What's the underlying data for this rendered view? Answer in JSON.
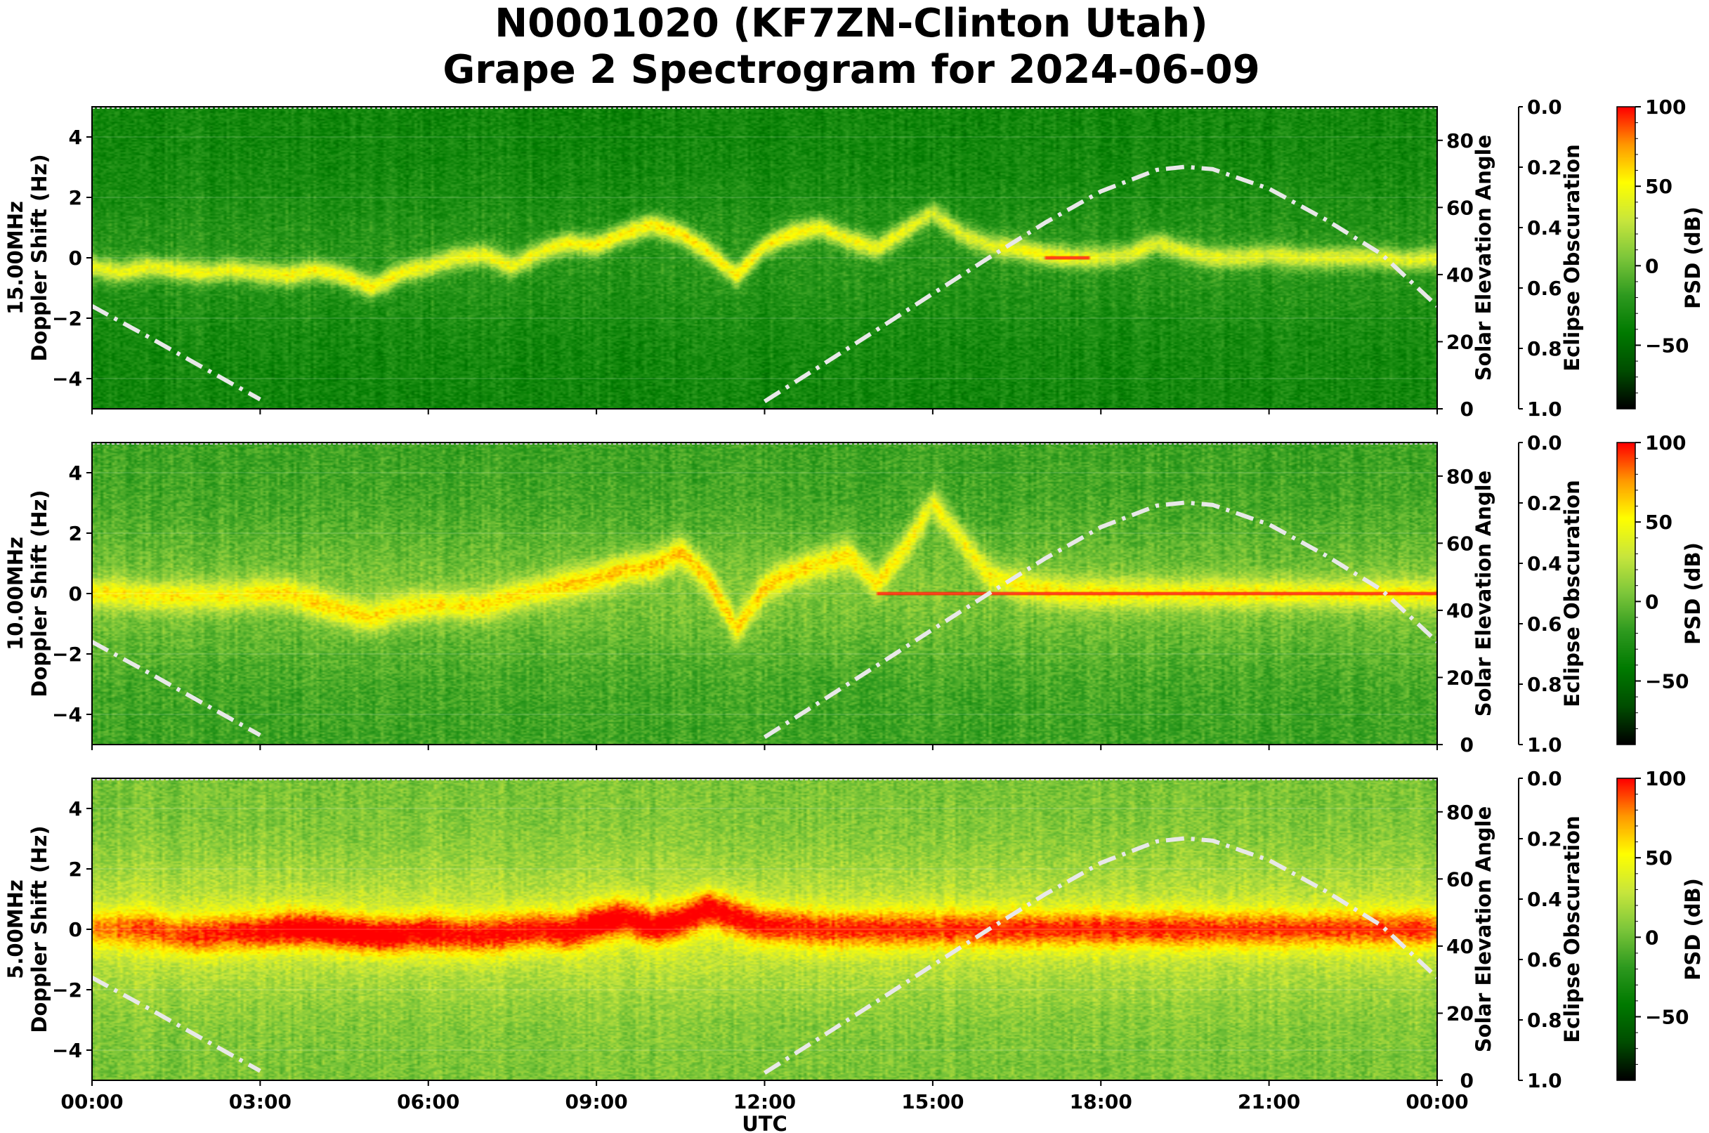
{
  "title_line1": "N0001020 (KF7ZN-Clinton Utah)",
  "title_line2": "Grape 2 Spectrogram for 2024-06-09",
  "colors": {
    "psd_colormap": [
      "#000000",
      "#004d00",
      "#007a00",
      "#2e9a1f",
      "#7cc63a",
      "#c8e63c",
      "#ffff00",
      "#ff9900",
      "#ff0000"
    ],
    "solar_curve": "#e8e8e8",
    "carrier_line": "#ff2a00"
  },
  "chart_data": [
    {
      "type": "heatmap",
      "panel_label": "15.00MHz",
      "ylabel": "Doppler Shift (Hz)",
      "ylim": [
        -5,
        5
      ],
      "yticks": [
        -4,
        -2,
        0,
        2,
        4
      ],
      "xlim": [
        "00:00",
        "00:00"
      ],
      "xticks": [
        "00:00",
        "03:00",
        "06:00",
        "09:00",
        "12:00",
        "15:00",
        "18:00",
        "21:00",
        "00:00"
      ],
      "right_axis_label": "Solar Elevation Angle",
      "right_axis_ylim": [
        0,
        90
      ],
      "right_axis_ticks": [
        0,
        20,
        40,
        60,
        80
      ],
      "eclipse_axis_label": "Eclipse Obscuration",
      "eclipse_ylim": [
        1.0,
        0.0
      ],
      "eclipse_ticks": [
        "0.0",
        "0.2",
        "0.4",
        "0.6",
        "0.8",
        "1.0"
      ],
      "colorbar_label": "PSD (dB)",
      "colorbar_range": [
        -90,
        100
      ],
      "colorbar_ticks": [
        "100",
        "50",
        "0",
        "−50"
      ],
      "background_level": 0.3,
      "trace": {
        "x_hours": [
          0,
          0.5,
          1.0,
          1.5,
          2.0,
          2.5,
          3.0,
          3.5,
          4.0,
          4.5,
          5.0,
          5.5,
          6.0,
          6.5,
          7.0,
          7.5,
          8.0,
          8.5,
          9.0,
          9.5,
          10.0,
          10.5,
          11.0,
          11.5,
          12.0,
          12.5,
          13.0,
          13.5,
          14.0,
          14.5,
          15.0,
          15.5,
          16.0,
          16.5,
          17.0,
          17.5,
          18.0,
          18.5,
          19.0,
          19.5,
          20.0,
          20.5,
          21.0,
          21.5,
          22.0,
          22.5,
          23.0,
          23.5,
          24.0
        ],
        "doppler_hz": [
          -0.3,
          -0.5,
          -0.3,
          -0.4,
          -0.5,
          -0.4,
          -0.5,
          -0.6,
          -0.4,
          -0.6,
          -1.0,
          -0.5,
          -0.3,
          0.0,
          0.1,
          -0.3,
          0.2,
          0.5,
          0.4,
          0.8,
          1.1,
          0.8,
          0.2,
          -0.6,
          0.4,
          0.8,
          1.0,
          0.6,
          0.3,
          0.9,
          1.5,
          0.8,
          0.4,
          0.3,
          0.1,
          0.0,
          0.0,
          0.1,
          0.5,
          0.2,
          0.0,
          0.0,
          0.1,
          0.0,
          0.0,
          0.0,
          0.0,
          -0.1,
          0.0
        ],
        "intensity": [
          0.65,
          0.65,
          0.65,
          0.65,
          0.65,
          0.65,
          0.65,
          0.68,
          0.68,
          0.7,
          0.7,
          0.68,
          0.66,
          0.66,
          0.66,
          0.66,
          0.68,
          0.68,
          0.7,
          0.72,
          0.72,
          0.72,
          0.7,
          0.7,
          0.7,
          0.7,
          0.68,
          0.66,
          0.66,
          0.66,
          0.62,
          0.62,
          0.64,
          0.66,
          0.68,
          0.66,
          0.62,
          0.62,
          0.62,
          0.62,
          0.62,
          0.62,
          0.62,
          0.62,
          0.62,
          0.62,
          0.62,
          0.62,
          0.62
        ],
        "spread_hz": 0.25
      },
      "carrier": {
        "x_start_hours": 17.0,
        "x_end_hours": 17.8,
        "doppler_hz": 0.0
      }
    },
    {
      "type": "heatmap",
      "panel_label": "10.00MHz",
      "ylabel": "Doppler Shift (Hz)",
      "ylim": [
        -5,
        5
      ],
      "yticks": [
        -4,
        -2,
        0,
        2,
        4
      ],
      "xlim": [
        "00:00",
        "00:00"
      ],
      "xticks": [
        "00:00",
        "03:00",
        "06:00",
        "09:00",
        "12:00",
        "15:00",
        "18:00",
        "21:00",
        "00:00"
      ],
      "right_axis_label": "Solar Elevation Angle",
      "right_axis_ylim": [
        0,
        90
      ],
      "right_axis_ticks": [
        0,
        20,
        40,
        60,
        80
      ],
      "eclipse_axis_label": "Eclipse Obscuration",
      "eclipse_ylim": [
        1.0,
        0.0
      ],
      "eclipse_ticks": [
        "0.0",
        "0.2",
        "0.4",
        "0.6",
        "0.8",
        "1.0"
      ],
      "colorbar_label": "PSD (dB)",
      "colorbar_range": [
        -90,
        100
      ],
      "colorbar_ticks": [
        "100",
        "50",
        "0",
        "−50"
      ],
      "background_level": 0.4,
      "trace": {
        "x_hours": [
          0,
          0.5,
          1.0,
          1.5,
          2.0,
          2.5,
          3.0,
          3.5,
          4.0,
          4.5,
          5.0,
          5.5,
          6.0,
          6.5,
          7.0,
          7.5,
          8.0,
          8.5,
          9.0,
          9.5,
          10.0,
          10.5,
          11.0,
          11.5,
          12.0,
          12.5,
          13.0,
          13.5,
          14.0,
          14.5,
          15.0,
          15.5,
          16.0,
          16.5,
          17.0,
          17.5,
          18.0,
          18.5,
          19.0,
          19.5,
          20.0,
          20.5,
          21.0,
          21.5,
          22.0,
          22.5,
          23.0,
          23.5,
          24.0
        ],
        "doppler_hz": [
          0.0,
          0.0,
          -0.1,
          -0.1,
          -0.1,
          -0.1,
          0.0,
          0.0,
          -0.3,
          -0.6,
          -0.8,
          -0.5,
          -0.4,
          -0.4,
          -0.4,
          -0.1,
          0.1,
          0.3,
          0.5,
          0.8,
          0.9,
          1.4,
          0.5,
          -1.2,
          0.2,
          0.7,
          1.0,
          1.3,
          0.3,
          1.5,
          3.0,
          1.8,
          0.6,
          0.3,
          0.1,
          0.0,
          0.0,
          0.0,
          0.0,
          0.0,
          0.0,
          0.0,
          0.0,
          0.0,
          0.0,
          0.0,
          0.0,
          0.0,
          0.0
        ],
        "intensity": [
          0.66,
          0.66,
          0.66,
          0.66,
          0.66,
          0.66,
          0.68,
          0.7,
          0.7,
          0.7,
          0.7,
          0.68,
          0.68,
          0.68,
          0.68,
          0.68,
          0.68,
          0.7,
          0.72,
          0.72,
          0.74,
          0.74,
          0.72,
          0.7,
          0.7,
          0.7,
          0.7,
          0.7,
          0.68,
          0.7,
          0.7,
          0.68,
          0.66,
          0.66,
          0.66,
          0.66,
          0.66,
          0.66,
          0.66,
          0.66,
          0.66,
          0.66,
          0.66,
          0.66,
          0.66,
          0.66,
          0.66,
          0.66,
          0.66
        ],
        "spread_hz": 0.35
      },
      "carrier": {
        "x_start_hours": 14.0,
        "x_end_hours": 24.0,
        "doppler_hz": 0.0
      }
    },
    {
      "type": "heatmap",
      "panel_label": "5.00MHz",
      "ylabel": "Doppler Shift (Hz)",
      "ylim": [
        -5,
        5
      ],
      "yticks": [
        -4,
        -2,
        0,
        2,
        4
      ],
      "xlabel": "UTC",
      "xlim": [
        "00:00",
        "00:00"
      ],
      "xticks": [
        "00:00",
        "03:00",
        "06:00",
        "09:00",
        "12:00",
        "15:00",
        "18:00",
        "21:00",
        "00:00"
      ],
      "right_axis_label": "Solar Elevation Angle",
      "right_axis_ylim": [
        0,
        90
      ],
      "right_axis_ticks": [
        0,
        20,
        40,
        60,
        80
      ],
      "eclipse_axis_label": "Eclipse Obscuration",
      "eclipse_ylim": [
        1.0,
        0.0
      ],
      "eclipse_ticks": [
        "0.0",
        "0.2",
        "0.4",
        "0.6",
        "0.8",
        "1.0"
      ],
      "colorbar_label": "PSD (dB)",
      "colorbar_range": [
        -90,
        100
      ],
      "colorbar_ticks": [
        "100",
        "50",
        "0",
        "−50"
      ],
      "background_level": 0.5,
      "trace": {
        "x_hours": [
          0,
          0.5,
          1.0,
          1.5,
          2.0,
          2.5,
          3.0,
          3.5,
          4.0,
          4.5,
          5.0,
          5.5,
          6.0,
          6.5,
          7.0,
          7.5,
          8.0,
          8.5,
          9.0,
          9.5,
          10.0,
          10.5,
          11.0,
          11.5,
          12.0,
          12.5,
          13.0,
          13.5,
          14.0,
          14.5,
          15.0,
          15.5,
          16.0,
          16.5,
          17.0,
          17.5,
          18.0,
          18.5,
          19.0,
          19.5,
          20.0,
          20.5,
          21.0,
          21.5,
          22.0,
          22.5,
          23.0,
          23.5,
          24.0
        ],
        "doppler_hz": [
          0.0,
          0.0,
          0.0,
          -0.2,
          -0.2,
          -0.1,
          -0.1,
          0.0,
          0.0,
          -0.1,
          -0.2,
          -0.2,
          -0.1,
          -0.2,
          -0.2,
          -0.1,
          0.0,
          -0.1,
          0.2,
          0.4,
          0.1,
          0.3,
          0.7,
          0.4,
          0.1,
          0.1,
          0.0,
          0.0,
          0.0,
          0.0,
          0.0,
          0.0,
          0.0,
          0.0,
          0.0,
          0.0,
          0.0,
          0.0,
          0.0,
          0.0,
          0.0,
          0.0,
          0.0,
          0.0,
          0.0,
          0.0,
          0.0,
          0.0,
          0.0
        ],
        "intensity": [
          0.76,
          0.78,
          0.8,
          0.82,
          0.84,
          0.86,
          0.88,
          0.92,
          0.94,
          0.94,
          0.94,
          0.92,
          0.9,
          0.88,
          0.88,
          0.88,
          0.88,
          0.9,
          0.92,
          0.92,
          0.92,
          0.9,
          0.92,
          0.9,
          0.88,
          0.86,
          0.84,
          0.84,
          0.84,
          0.84,
          0.84,
          0.84,
          0.84,
          0.84,
          0.84,
          0.84,
          0.84,
          0.84,
          0.84,
          0.84,
          0.82,
          0.82,
          0.82,
          0.82,
          0.82,
          0.82,
          0.82,
          0.82,
          0.82
        ],
        "spread_hz": 0.45
      },
      "carrier": {
        "x_start_hours": 12.0,
        "x_end_hours": 24.0,
        "doppler_hz": 0.0
      }
    }
  ],
  "solar_elevation_deg": {
    "x_hours": [
      0,
      1,
      2,
      3,
      4,
      5,
      6,
      7,
      8,
      9,
      10,
      11,
      12,
      13,
      14,
      15,
      16,
      17,
      18,
      19,
      19.5,
      20,
      21,
      22,
      23,
      24
    ],
    "values": [
      30.6,
      21.5,
      12.1,
      2.8,
      null,
      null,
      null,
      null,
      null,
      null,
      null,
      null,
      2.2,
      12.8,
      23.5,
      34.3,
      45.0,
      55.4,
      64.8,
      71.2,
      72.1,
      71.4,
      65.6,
      56.5,
      46.2,
      30.6
    ]
  }
}
